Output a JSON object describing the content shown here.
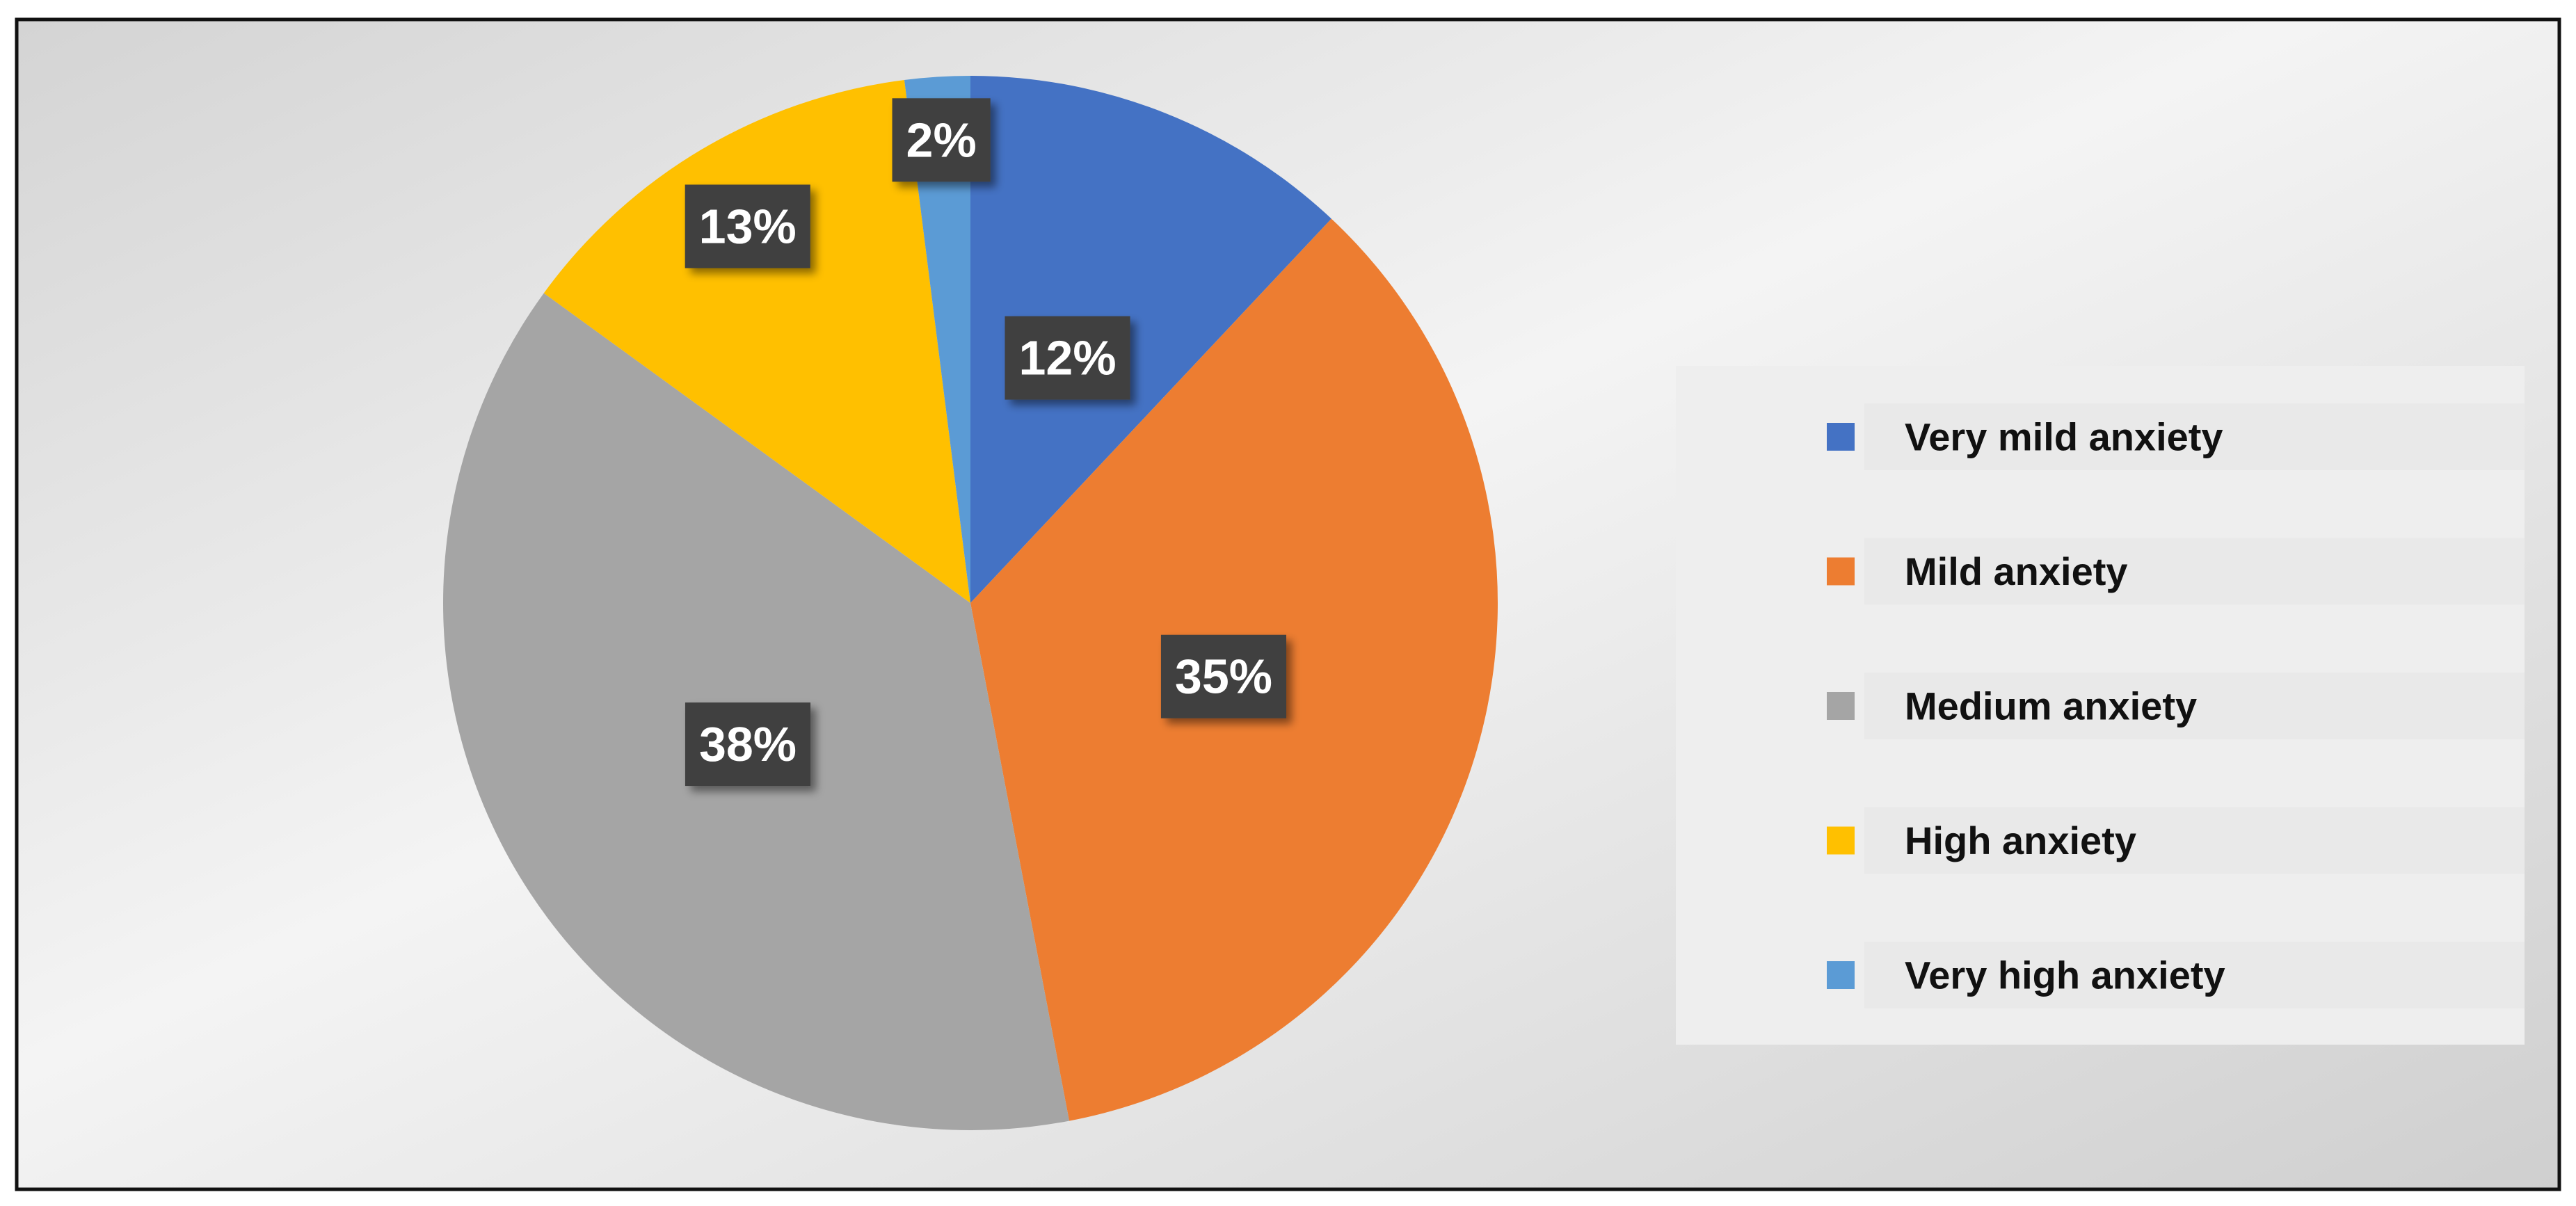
{
  "chart_data": {
    "type": "pie",
    "categories": [
      "Very mild anxiety",
      "Mild anxiety",
      "Medium anxiety",
      "High anxiety",
      "Very high anxiety"
    ],
    "values": [
      12,
      35,
      38,
      13,
      2
    ],
    "value_labels": [
      "12%",
      "35%",
      "38%",
      "13%",
      "2%"
    ],
    "colors": [
      "#4472c4",
      "#ed7d31",
      "#a5a5a5",
      "#ffc000",
      "#5b9bd5"
    ],
    "legend": "right"
  }
}
